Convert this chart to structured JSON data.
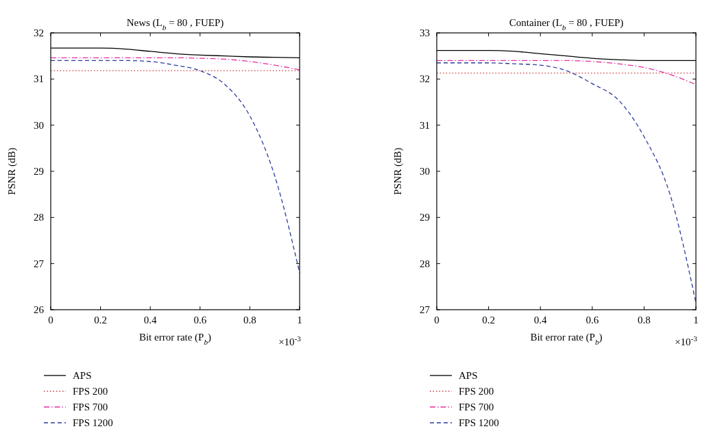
{
  "chart_data": [
    {
      "type": "line",
      "title": "News (L$_{b}$ = 80 , FUEP)",
      "xlabel": "Bit error rate (P$_{b}$)",
      "ylabel": "PSNR (dB)",
      "annotations": [
        "×10$^{-3}$"
      ],
      "x": [
        0,
        0.1,
        0.2,
        0.3,
        0.4,
        0.5,
        0.6,
        0.7,
        0.8,
        0.9,
        1
      ],
      "xlim": [
        0,
        1
      ],
      "xticks": [
        0,
        0.2,
        0.4,
        0.6,
        0.8,
        1
      ],
      "ylim": [
        26,
        32
      ],
      "yticks": [
        26,
        27,
        28,
        29,
        30,
        31,
        32
      ],
      "grid": false,
      "legend": "bottom",
      "marker": "none",
      "series": [
        {
          "name": "APS",
          "color": "#000000",
          "line_style": "solid",
          "values": [
            31.67,
            31.67,
            31.67,
            31.65,
            31.6,
            31.55,
            31.52,
            31.5,
            31.48,
            31.47,
            31.46
          ]
        },
        {
          "name": "FPS 200",
          "color": "#cc3333",
          "line_style": "dotted",
          "values": [
            31.18,
            31.18,
            31.18,
            31.18,
            31.18,
            31.18,
            31.18,
            31.18,
            31.18,
            31.18,
            31.18
          ]
        },
        {
          "name": "FPS 700",
          "color": "#e62ea0",
          "line_style": "dashdot",
          "values": [
            31.46,
            31.46,
            31.46,
            31.46,
            31.46,
            31.46,
            31.45,
            31.43,
            31.38,
            31.3,
            31.2
          ]
        },
        {
          "name": "FPS 1200",
          "color": "#2b3a9e",
          "line_style": "dashed",
          "values": [
            31.4,
            31.4,
            31.4,
            31.4,
            31.38,
            31.3,
            31.18,
            30.88,
            30.2,
            28.9,
            26.8
          ]
        }
      ]
    },
    {
      "type": "line",
      "title": "Container (L$_{b}$ = 80 , FUEP)",
      "xlabel": "Bit error rate (P$_{b}$)",
      "ylabel": "PSNR (dB)",
      "annotations": [
        "×10$^{-3}$"
      ],
      "x": [
        0,
        0.1,
        0.2,
        0.3,
        0.4,
        0.5,
        0.6,
        0.7,
        0.8,
        0.9,
        1
      ],
      "xlim": [
        0,
        1
      ],
      "xticks": [
        0,
        0.2,
        0.4,
        0.6,
        0.8,
        1
      ],
      "ylim": [
        27,
        33
      ],
      "yticks": [
        27,
        28,
        29,
        30,
        31,
        32,
        33
      ],
      "grid": false,
      "legend": "bottom",
      "marker": "none",
      "series": [
        {
          "name": "APS",
          "color": "#000000",
          "line_style": "solid",
          "values": [
            32.62,
            32.62,
            32.62,
            32.6,
            32.55,
            32.5,
            32.45,
            32.42,
            32.4,
            32.4,
            32.4
          ]
        },
        {
          "name": "FPS 200",
          "color": "#cc3333",
          "line_style": "dotted",
          "values": [
            32.13,
            32.13,
            32.13,
            32.13,
            32.13,
            32.13,
            32.13,
            32.13,
            32.13,
            32.13,
            32.13
          ]
        },
        {
          "name": "FPS 700",
          "color": "#e62ea0",
          "line_style": "dashdot",
          "values": [
            32.4,
            32.4,
            32.4,
            32.4,
            32.4,
            32.4,
            32.38,
            32.33,
            32.25,
            32.1,
            31.88
          ]
        },
        {
          "name": "FPS 1200",
          "color": "#2b3a9e",
          "line_style": "dashed",
          "values": [
            32.35,
            32.35,
            32.35,
            32.33,
            32.3,
            32.18,
            31.9,
            31.55,
            30.75,
            29.5,
            27.15
          ]
        }
      ]
    }
  ]
}
